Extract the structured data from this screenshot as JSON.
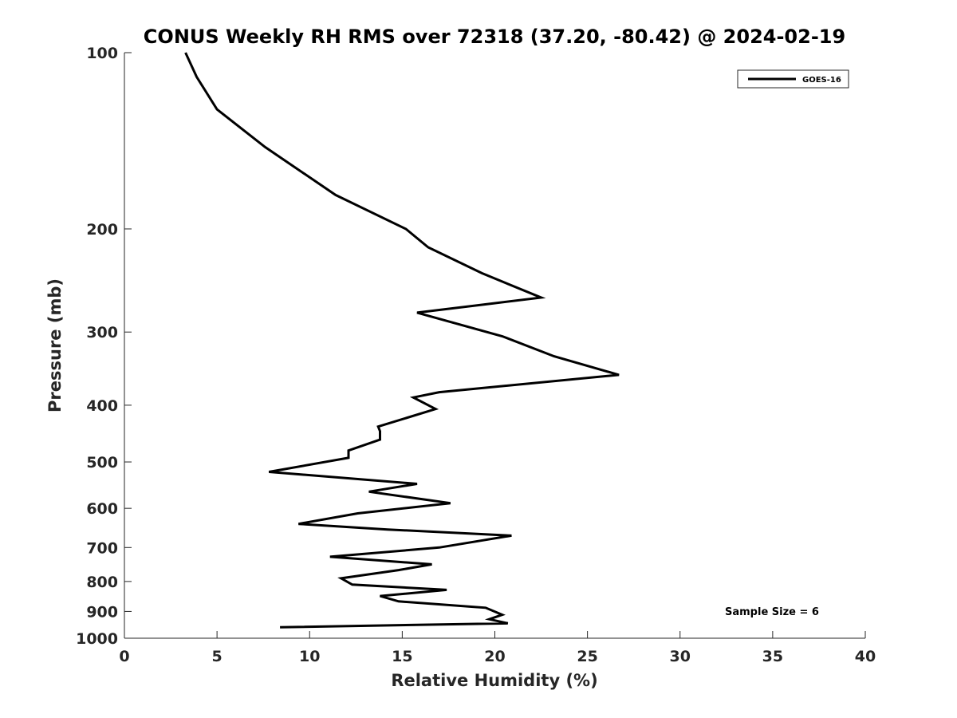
{
  "chart_data": {
    "type": "line",
    "title": "CONUS Weekly RH RMS over 72318 (37.20, -80.42) @ 2024-02-19",
    "xlabel": "Relative Humidity (%)",
    "ylabel": "Pressure (mb)",
    "xlim": [
      0,
      40
    ],
    "ylim": [
      100,
      1000
    ],
    "y_scale": "log",
    "y_reversed": true,
    "x_ticks": [
      0,
      5,
      10,
      15,
      20,
      25,
      30,
      35,
      40
    ],
    "x_tick_labels": [
      "0",
      "5",
      "10",
      "15",
      "20",
      "25",
      "30",
      "35",
      "40"
    ],
    "y_ticks": [
      100,
      200,
      300,
      400,
      500,
      600,
      700,
      800,
      900,
      1000
    ],
    "y_tick_labels": [
      "100",
      "200",
      "300",
      "400",
      "500",
      "600",
      "700",
      "800",
      "900",
      "1000"
    ],
    "grid": false,
    "legend_position": "top-right",
    "series": [
      {
        "name": "GOES-16",
        "color": "#000000",
        "x": [
          3.3,
          3.9,
          5.0,
          7.6,
          11.4,
          15.2,
          16.4,
          19.3,
          22.5,
          15.8,
          20.4,
          23.2,
          26.7,
          17.0,
          15.6,
          16.8,
          13.7,
          13.8,
          13.8,
          12.1,
          12.1,
          7.8,
          15.8,
          13.2,
          17.6,
          12.6,
          9.4,
          14.2,
          20.9,
          17.0,
          11.1,
          16.6,
          14.8,
          11.7,
          12.3,
          17.4,
          13.8,
          14.8,
          19.5,
          20.4,
          19.7,
          20.7,
          8.4
        ],
        "y": [
          100,
          110,
          125,
          145,
          175,
          200,
          215,
          238,
          262,
          278,
          305,
          330,
          355,
          380,
          388,
          406,
          435,
          443,
          458,
          478,
          492,
          520,
          545,
          562,
          588,
          612,
          638,
          652,
          668,
          700,
          726,
          748,
          765,
          790,
          810,
          827,
          847,
          865,
          887,
          912,
          928,
          943,
          958
        ]
      }
    ],
    "annotations": [
      "Sample Size = 6"
    ]
  }
}
